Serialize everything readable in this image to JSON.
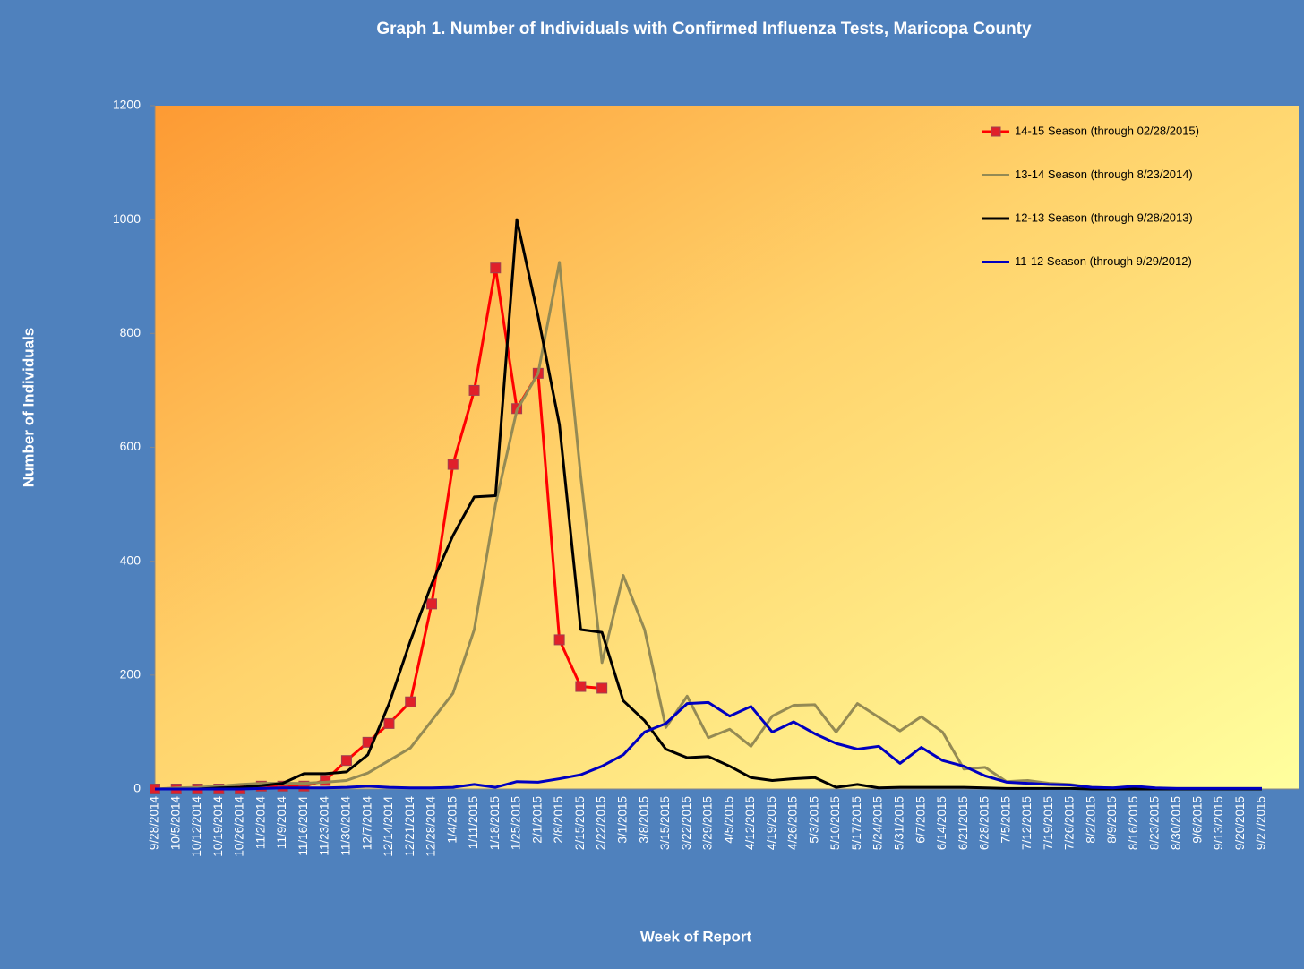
{
  "chart_data": {
    "type": "line",
    "title": "Graph 1. Number of Individuals with Confirmed Influenza Tests, Maricopa County",
    "x_label": "Week of Report",
    "y_label": "Number of Individuals",
    "categories": [
      "9/28/2014",
      "10/5/2014",
      "10/12/2014",
      "10/19/2014",
      "10/26/2014",
      "11/2/2014",
      "11/9/2014",
      "11/16/2014",
      "11/23/2014",
      "11/30/2014",
      "12/7/2014",
      "12/14/2014",
      "12/21/2014",
      "12/28/2014",
      "1/4/2015",
      "1/11/2015",
      "1/18/2015",
      "1/25/2015",
      "2/1/2015",
      "2/8/2015",
      "2/15/2015",
      "2/22/2015",
      "3/1/2015",
      "3/8/2015",
      "3/15/2015",
      "3/22/2015",
      "3/29/2015",
      "4/5/2015",
      "4/12/2015",
      "4/19/2015",
      "4/26/2015",
      "5/3/2015",
      "5/10/2015",
      "5/17/2015",
      "5/24/2015",
      "5/31/2015",
      "6/7/2015",
      "6/14/2015",
      "6/21/2015",
      "6/28/2015",
      "7/5/2015",
      "7/12/2015",
      "7/19/2015",
      "7/26/2015",
      "8/2/2015",
      "8/9/2015",
      "8/16/2015",
      "8/23/2015",
      "8/30/2015",
      "9/6/2015",
      "9/13/2015",
      "9/20/2015",
      "9/27/2015"
    ],
    "series": [
      {
        "name": "14-15 Season (through 02/28/2015)",
        "color": "#ff0000",
        "marker": "square",
        "marker_color": "#e0202a",
        "values": [
          0,
          0,
          0,
          0,
          0,
          5,
          5,
          5,
          15,
          50,
          82,
          115,
          153,
          325,
          570,
          700,
          915,
          668,
          730,
          262,
          180,
          177,
          null,
          null,
          null,
          null,
          null,
          null,
          null,
          null,
          null,
          null,
          null,
          null,
          null,
          null,
          null,
          null,
          null,
          null,
          null,
          null,
          null,
          null,
          null,
          null,
          null,
          null,
          null,
          null,
          null,
          null,
          null
        ]
      },
      {
        "name": "13-14 Season (through 8/23/2014)",
        "color": "#948a54",
        "values": [
          0,
          2,
          3,
          5,
          8,
          10,
          10,
          10,
          12,
          15,
          28,
          50,
          72,
          120,
          168,
          280,
          500,
          665,
          730,
          925,
          550,
          222,
          375,
          280,
          108,
          163,
          90,
          105,
          75,
          128,
          147,
          148,
          100,
          150,
          126,
          102,
          127,
          100,
          35,
          38,
          13,
          15,
          10,
          8,
          3,
          2,
          2,
          1,
          1,
          1,
          1,
          1,
          1
        ]
      },
      {
        "name": "12-13 Season (through 9/28/2013)",
        "color": "#000000",
        "values": [
          0,
          0,
          0,
          2,
          3,
          6,
          10,
          27,
          27,
          30,
          60,
          150,
          260,
          360,
          445,
          513,
          515,
          1000,
          830,
          640,
          280,
          275,
          155,
          120,
          70,
          55,
          57,
          40,
          20,
          15,
          18,
          20,
          3,
          8,
          2,
          3,
          3,
          3,
          3,
          2,
          1,
          1,
          1,
          1,
          0,
          0,
          0,
          0,
          0,
          0,
          0,
          0,
          0
        ]
      },
      {
        "name": "11-12 Season (through 9/29/2012)",
        "color": "#0000c0",
        "values": [
          0,
          0,
          0,
          0,
          0,
          1,
          2,
          2,
          2,
          3,
          5,
          3,
          2,
          2,
          3,
          8,
          3,
          13,
          12,
          18,
          25,
          40,
          60,
          100,
          115,
          150,
          152,
          128,
          145,
          100,
          118,
          97,
          80,
          70,
          75,
          45,
          73,
          50,
          40,
          23,
          12,
          10,
          8,
          7,
          3,
          2,
          5,
          2,
          1,
          1,
          1,
          1,
          1
        ]
      }
    ],
    "ylim": [
      0,
      1200
    ],
    "yticks": [
      0,
      200,
      400,
      600,
      800,
      1000,
      1200
    ],
    "grid": false,
    "legend": "top-right"
  }
}
